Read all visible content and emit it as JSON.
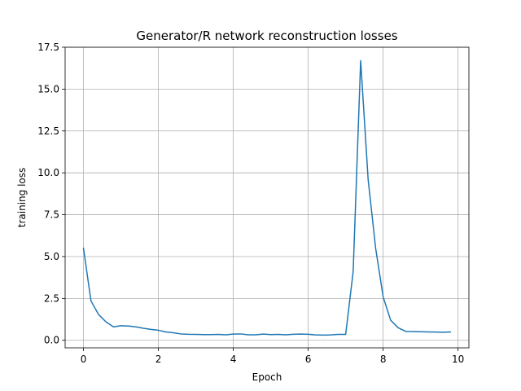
{
  "chart_data": {
    "type": "line",
    "title": "Generator/R network reconstruction losses",
    "xlabel": "Epoch",
    "ylabel": "training loss",
    "xlim": [
      -0.49,
      10.29
    ],
    "ylim": [
      -0.45,
      17.5
    ],
    "xticks": [
      0,
      2,
      4,
      6,
      8,
      10
    ],
    "xtick_labels": [
      "0",
      "2",
      "4",
      "6",
      "8",
      "10"
    ],
    "yticks": [
      0.0,
      2.5,
      5.0,
      7.5,
      10.0,
      12.5,
      15.0,
      17.5
    ],
    "ytick_labels": [
      "0.0",
      "2.5",
      "5.0",
      "7.5",
      "10.0",
      "12.5",
      "15.0",
      "17.5"
    ],
    "grid": true,
    "series": [
      {
        "color": "#1f77b4",
        "x": [
          0.0,
          0.2,
          0.4,
          0.6,
          0.8,
          1.0,
          1.2,
          1.4,
          1.6,
          1.8,
          2.0,
          2.2,
          2.4,
          2.6,
          2.8,
          3.0,
          3.2,
          3.4,
          3.6,
          3.8,
          4.0,
          4.2,
          4.4,
          4.6,
          4.8,
          5.0,
          5.2,
          5.4,
          5.6,
          5.8,
          6.0,
          6.2,
          6.4,
          6.6,
          6.8,
          7.0,
          7.2,
          7.4,
          7.6,
          7.8,
          8.0,
          8.2,
          8.4,
          8.6,
          8.8,
          9.0,
          9.2,
          9.4,
          9.6,
          9.8
        ],
        "y": [
          5.5,
          2.35,
          1.55,
          1.1,
          0.8,
          0.87,
          0.85,
          0.8,
          0.72,
          0.65,
          0.6,
          0.5,
          0.45,
          0.38,
          0.36,
          0.35,
          0.34,
          0.34,
          0.35,
          0.33,
          0.37,
          0.38,
          0.33,
          0.33,
          0.37,
          0.34,
          0.35,
          0.33,
          0.36,
          0.37,
          0.36,
          0.32,
          0.31,
          0.32,
          0.35,
          0.35,
          4.1,
          16.7,
          9.6,
          5.5,
          2.6,
          1.2,
          0.75,
          0.53,
          0.52,
          0.51,
          0.5,
          0.49,
          0.48,
          0.5
        ]
      }
    ]
  }
}
